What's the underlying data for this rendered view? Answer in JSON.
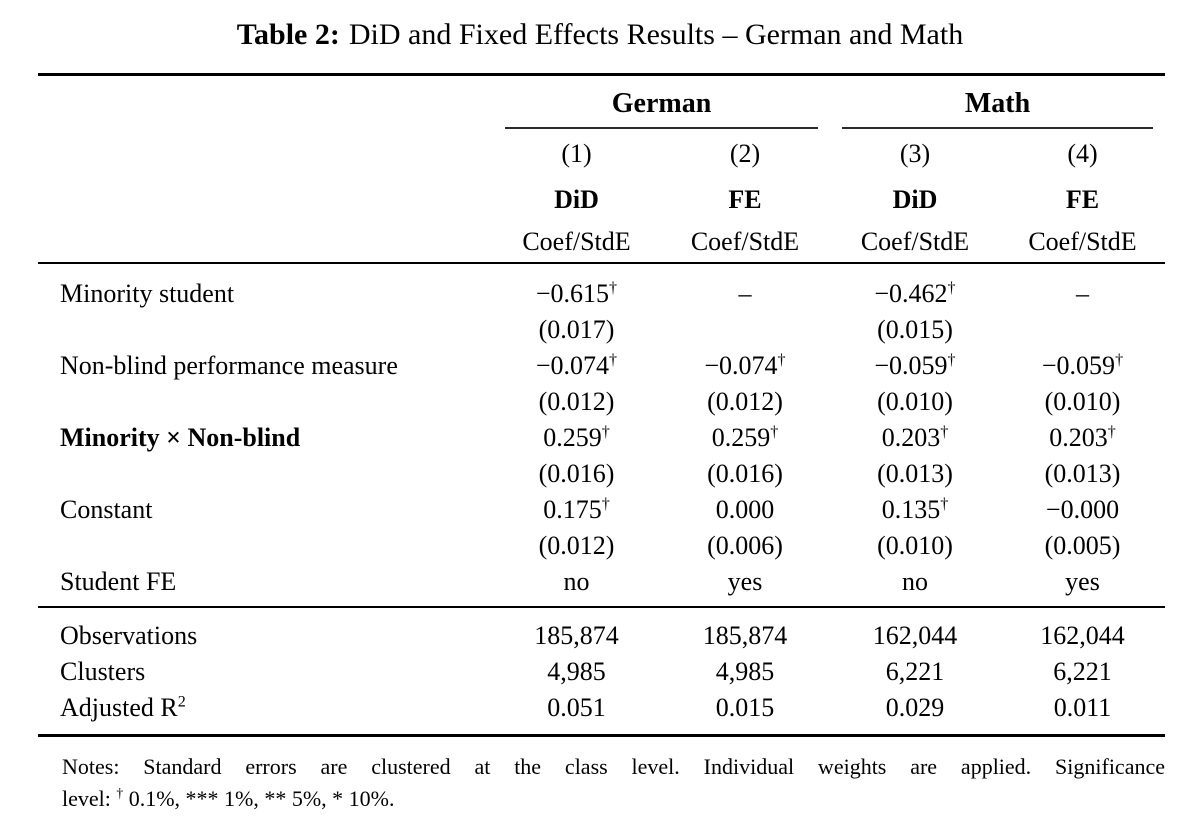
{
  "title": {
    "prefix": "Table 2:",
    "text": "DiD and Fixed Effects Results – German and Math"
  },
  "table": {
    "groups": [
      {
        "label": "German"
      },
      {
        "label": "Math"
      }
    ],
    "column_numbers": [
      "(1)",
      "(2)",
      "(3)",
      "(4)"
    ],
    "model_headers": [
      "DiD",
      "FE",
      "DiD",
      "FE"
    ],
    "subheaders": [
      "Coef/StdE",
      "Coef/StdE",
      "Coef/StdE",
      "Coef/StdE"
    ],
    "variables": [
      {
        "label": "Minority student",
        "bold": false,
        "coef": [
          "−0.615^{†}",
          "–",
          "−0.462^{†}",
          "–"
        ],
        "se": [
          "(0.017)",
          "",
          "(0.015)",
          ""
        ]
      },
      {
        "label": "Non-blind performance measure",
        "bold": false,
        "coef": [
          "−0.074^{†}",
          "−0.074^{†}",
          "−0.059^{†}",
          "−0.059^{†}"
        ],
        "se": [
          "(0.012)",
          "(0.012)",
          "(0.010)",
          "(0.010)"
        ]
      },
      {
        "label": "Minority × Non-blind",
        "bold": true,
        "coef": [
          "0.259^{†}",
          "0.259^{†}",
          "0.203^{†}",
          "0.203^{†}"
        ],
        "se": [
          "(0.016)",
          "(0.016)",
          "(0.013)",
          "(0.013)"
        ]
      },
      {
        "label": "Constant",
        "bold": false,
        "coef": [
          "0.175^{†}",
          "0.000",
          "0.135^{†}",
          "−0.000"
        ],
        "se": [
          "(0.012)",
          "(0.006)",
          "(0.010)",
          "(0.005)"
        ]
      }
    ],
    "student_fe": {
      "label": "Student FE",
      "values": [
        "no",
        "yes",
        "no",
        "yes"
      ]
    },
    "stats": [
      {
        "label": "Observations",
        "values": [
          "185,874",
          "185,874",
          "162,044",
          "162,044"
        ]
      },
      {
        "label": "Clusters",
        "values": [
          "4,985",
          "4,985",
          "6,221",
          "6,221"
        ]
      },
      {
        "label": "Adjusted R^{2}",
        "values": [
          "0.051",
          "0.015",
          "0.029",
          "0.011"
        ]
      }
    ]
  },
  "notes": {
    "line1": "Notes: Standard errors are clustered at the class level. Individual weights are applied. Significance",
    "line2": "level: ^{†} 0.1%, *** 1%, ** 5%, * 10%."
  }
}
